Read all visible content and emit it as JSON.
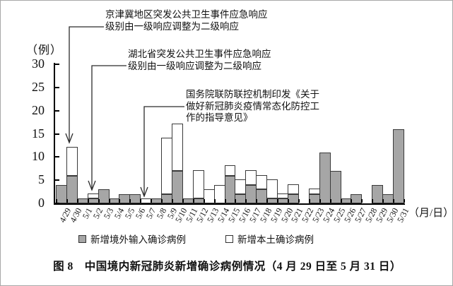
{
  "y_axis": {
    "unit_label": "（例）"
  },
  "x_axis": {
    "unit_label": "（月/日）"
  },
  "annotations": [
    {
      "lines": [
        "京津冀地区突发公共卫生事件应急响应",
        "级别由一级响应调整为二级响应"
      ]
    },
    {
      "lines": [
        "湖北省突发公共卫生事件应急响应",
        "级别由一级响应调整为二级响应"
      ]
    },
    {
      "lines": [
        "国务院联防联控机制印发《关于",
        "做好新冠肺炎疫情常态化防控工",
        "作的指导意见》"
      ]
    }
  ],
  "legend": {
    "items": [
      {
        "label": "新增境外输入确诊病例",
        "style": "filled"
      },
      {
        "label": "新增本土确诊病例",
        "style": "open"
      }
    ]
  },
  "caption": "图 8　中国境内新冠肺炎新增确诊病例情况（4 月 29 日至 5 月 31 日）",
  "colors": {
    "bar_fill": "#a6a6a6",
    "bar_border": "#3a3a3a",
    "axis": "#000000"
  },
  "chart_data": {
    "type": "bar",
    "stacked": true,
    "title": "图 8　中国境内新冠肺炎新增确诊病例情况（4 月 29 日至 5 月 31 日）",
    "xlabel": "（月/日）",
    "ylabel": "（例）",
    "ylim": [
      0,
      30
    ],
    "yticks": [
      0,
      5,
      10,
      15,
      20,
      25,
      30
    ],
    "grid": false,
    "legend_position": "bottom",
    "categories": [
      "4/29",
      "4/30",
      "5/1",
      "5/2",
      "5/3",
      "5/4",
      "5/5",
      "5/6",
      "5/7",
      "5/8",
      "5/9",
      "5/10",
      "5/11",
      "5/12",
      "5/13",
      "5/14",
      "5/15",
      "5/16",
      "5/17",
      "5/18",
      "5/19",
      "5/20",
      "5/21",
      "5/22",
      "5/23",
      "5/24",
      "5/25",
      "5/26",
      "5/27",
      "5/28",
      "5/29",
      "5/30",
      "5/31"
    ],
    "series": [
      {
        "name": "新增境外输入确诊病例",
        "values": [
          4,
          6,
          1,
          1,
          3,
          1,
          2,
          2,
          0,
          1,
          2,
          7,
          1,
          1,
          0,
          0,
          6,
          2,
          4,
          3,
          1,
          1,
          2,
          0,
          2,
          11,
          7,
          1,
          2,
          0,
          4,
          2,
          16
        ]
      },
      {
        "name": "新增本土确诊病例",
        "values": [
          0,
          6,
          0,
          1,
          0,
          0,
          0,
          0,
          1,
          0,
          12,
          10,
          0,
          6,
          3,
          4,
          2,
          3,
          3,
          3,
          4,
          1,
          2,
          0,
          1,
          0,
          0,
          0,
          0,
          0,
          0,
          0,
          0
        ]
      }
    ],
    "annotation_targets": [
      "4/30",
      "5/2",
      "5/7"
    ]
  }
}
